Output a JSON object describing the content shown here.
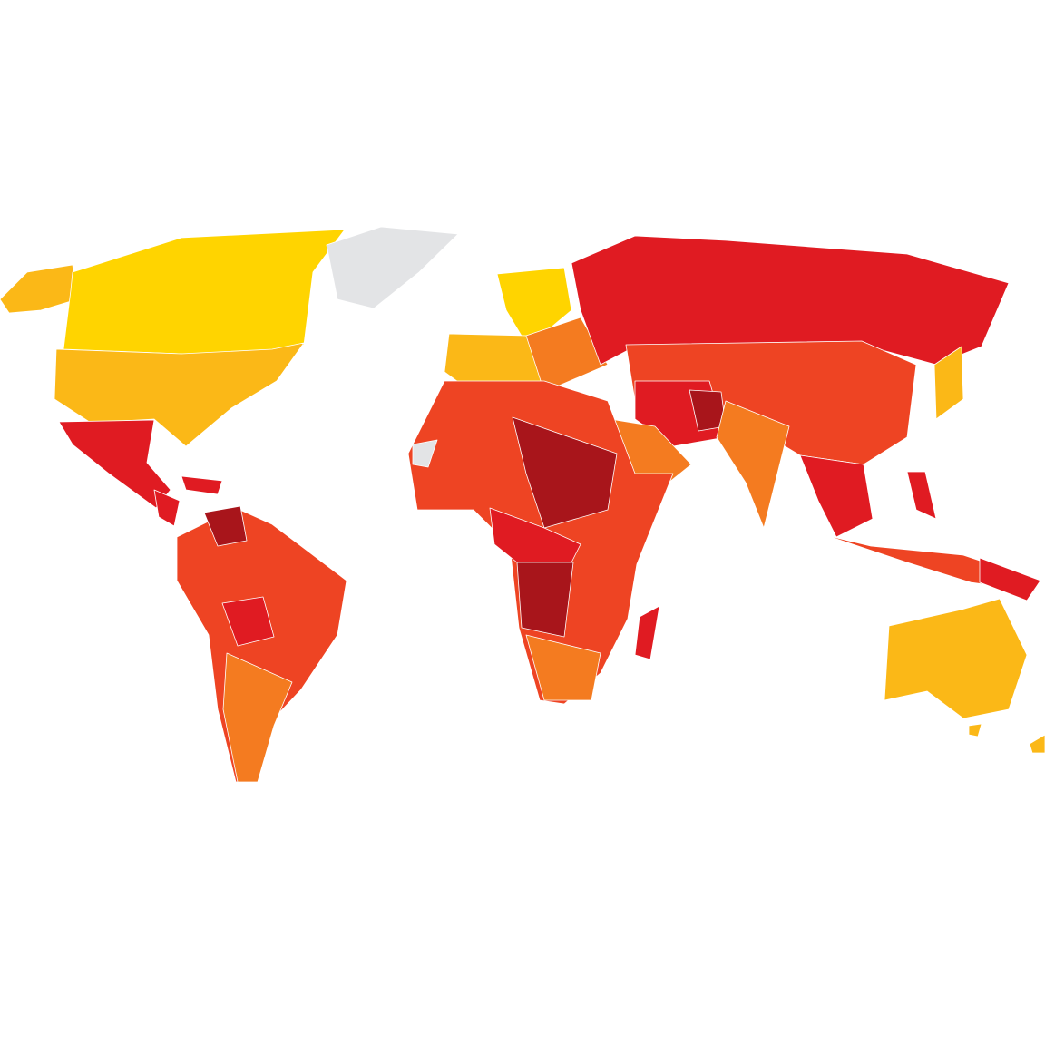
{
  "map": {
    "type": "choropleth-world",
    "background": "#ffffff",
    "colors": {
      "band_1": "#FFD400",
      "band_2": "#FBB817",
      "band_3": "#F47B20",
      "band_4": "#EE4423",
      "band_5": "#E01B22",
      "band_6": "#A8151B",
      "no_data": "#E3E4E6"
    }
  }
}
